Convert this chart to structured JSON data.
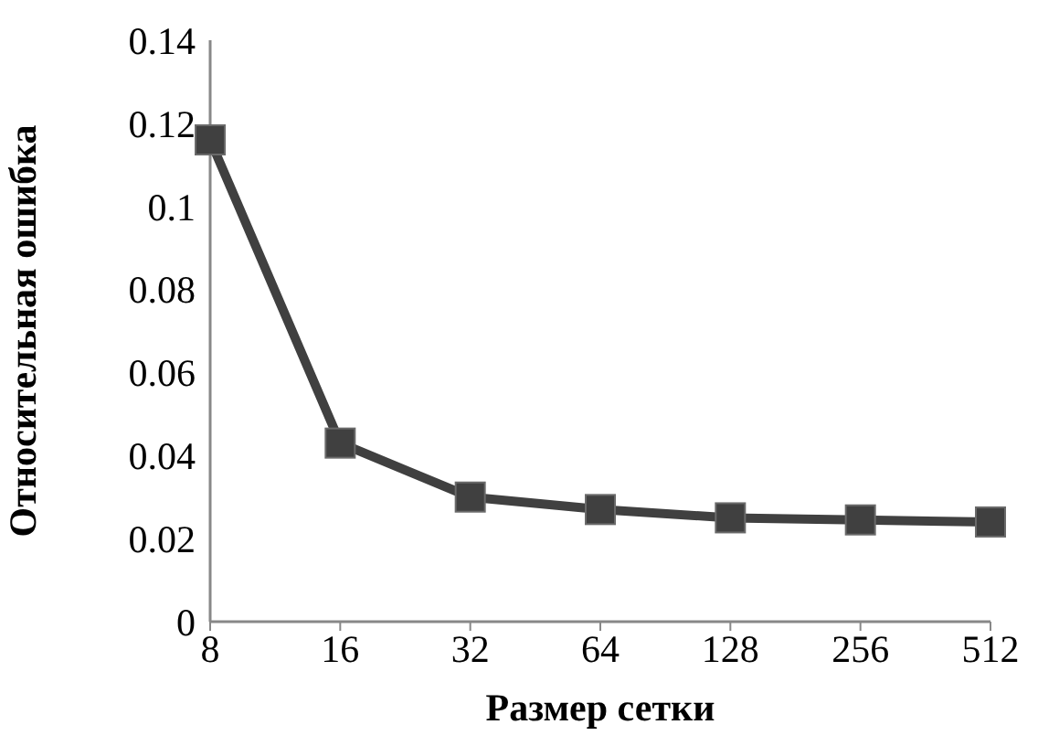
{
  "chart_data": {
    "type": "line",
    "xlabel": "Размер сетки",
    "ylabel": "Относительная ошибка",
    "categories": [
      "8",
      "16",
      "32",
      "64",
      "128",
      "256",
      "512"
    ],
    "series": [
      {
        "color": "#404040",
        "values": [
          0.116,
          0.043,
          0.03,
          0.027,
          0.025,
          0.0245,
          0.024
        ]
      }
    ],
    "ylim": [
      0,
      0.14
    ],
    "yticks": [
      0,
      0.02,
      0.04,
      0.06,
      0.08,
      0.1,
      0.12,
      0.14
    ],
    "grid": false,
    "legend": false,
    "marker": "square",
    "line_style": "solid"
  }
}
